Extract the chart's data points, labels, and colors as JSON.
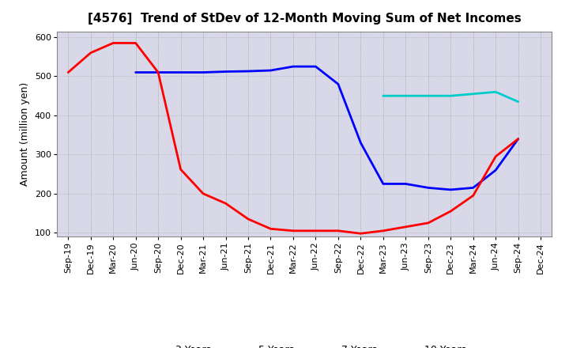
{
  "title": "[4576]  Trend of StDev of 12-Month Moving Sum of Net Incomes",
  "ylabel": "Amount (million yen)",
  "ylim": [
    90,
    615
  ],
  "yticks": [
    100,
    200,
    300,
    400,
    500,
    600
  ],
  "plot_bg_color": "#d8d8e8",
  "fig_bg_color": "#ffffff",
  "grid_color": "#aaaaaa",
  "x_labels": [
    "Sep-19",
    "Dec-19",
    "Mar-20",
    "Jun-20",
    "Sep-20",
    "Dec-20",
    "Mar-21",
    "Jun-21",
    "Sep-21",
    "Dec-21",
    "Mar-22",
    "Jun-22",
    "Sep-22",
    "Dec-22",
    "Mar-23",
    "Jun-23",
    "Sep-23",
    "Dec-23",
    "Mar-24",
    "Jun-24",
    "Sep-24",
    "Dec-24"
  ],
  "series_3y_x": [
    0,
    1,
    2,
    3,
    4,
    5,
    6,
    7,
    8,
    9,
    10,
    11,
    12,
    13,
    14,
    15,
    16,
    17,
    18,
    19,
    20
  ],
  "series_3y_y": [
    510,
    560,
    585,
    585,
    510,
    262,
    200,
    175,
    135,
    110,
    105,
    105,
    105,
    98,
    105,
    115,
    125,
    155,
    195,
    295,
    340
  ],
  "series_5y_x": [
    3,
    4,
    5,
    6,
    7,
    8,
    9,
    10,
    11,
    12,
    13,
    14,
    15,
    16,
    17,
    18,
    19,
    20
  ],
  "series_5y_y": [
    510,
    510,
    510,
    510,
    512,
    513,
    515,
    525,
    525,
    480,
    330,
    225,
    225,
    215,
    210,
    215,
    260,
    340
  ],
  "series_7y_x": [
    14,
    15,
    16,
    17,
    18,
    19,
    20
  ],
  "series_7y_y": [
    450,
    450,
    450,
    450,
    455,
    460,
    435
  ],
  "series_10y_x": [],
  "series_10y_y": [],
  "color_3y": "#ff0000",
  "color_5y": "#0000ff",
  "color_7y": "#00cccc",
  "color_10y": "#008800",
  "linewidth": 2.0,
  "title_fontsize": 11,
  "axis_fontsize": 8,
  "ylabel_fontsize": 9,
  "legend_fontsize": 9
}
